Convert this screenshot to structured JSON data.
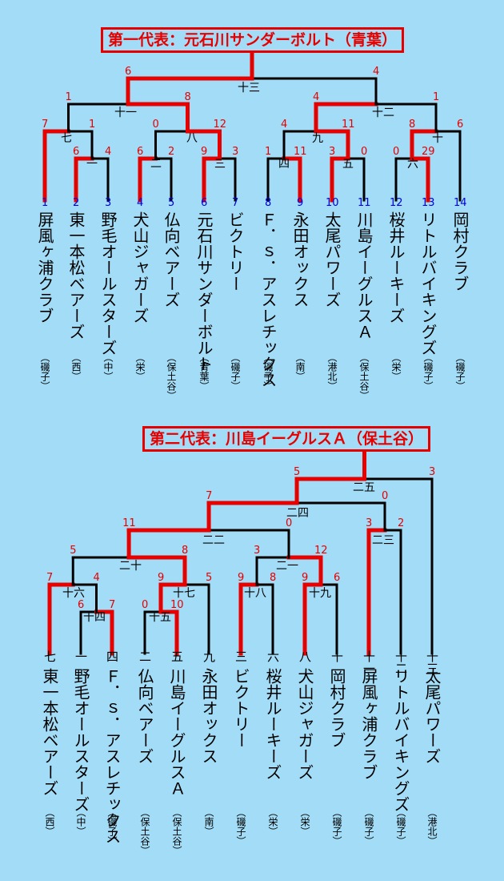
{
  "t1": {
    "title": "第一代表：元石川サンダーボルト（青葉）",
    "teams": [
      {
        "seed": "1",
        "name": "屏風ヶ浦クラブ",
        "ward": "（磯子）"
      },
      {
        "seed": "2",
        "name": "東一本松ベアーズ",
        "ward": "（西）"
      },
      {
        "seed": "3",
        "name": "野毛オールスターズ",
        "ward": "（中）"
      },
      {
        "seed": "4",
        "name": "犬山ジャガーズ",
        "ward": "（栄）"
      },
      {
        "seed": "5",
        "name": "仏向ベアーズ",
        "ward": "（保土谷）"
      },
      {
        "seed": "6",
        "name": "元石川サンダーボルト",
        "ward": "（青葉）"
      },
      {
        "seed": "7",
        "name": "ビクトリー",
        "ward": "（磯子）"
      },
      {
        "seed": "8",
        "name": "Ｆ．ｓ．アスレチックス",
        "ward": "（磯子）"
      },
      {
        "seed": "9",
        "name": "永田オックス",
        "ward": "（南）"
      },
      {
        "seed": "10",
        "name": "太尾パワーズ",
        "ward": "（港北）"
      },
      {
        "seed": "11",
        "name": "川島イーグルスＡ",
        "ward": "（保土谷）"
      },
      {
        "seed": "12",
        "name": "桜井ルーキーズ",
        "ward": "（栄）"
      },
      {
        "seed": "13",
        "name": "リトルバイキングズ",
        "ward": "（磯子）"
      },
      {
        "seed": "14",
        "name": "岡村クラブ",
        "ward": "（磯子）"
      }
    ],
    "matches": [
      {
        "id": "一",
        "l": "6",
        "r": "4"
      },
      {
        "id": "二",
        "l": "6",
        "r": "2"
      },
      {
        "id": "三",
        "l": "9",
        "r": "3"
      },
      {
        "id": "四",
        "l": "1",
        "r": "11"
      },
      {
        "id": "五",
        "l": "3",
        "r": "0"
      },
      {
        "id": "六",
        "l": "0",
        "r": "29"
      },
      {
        "id": "七",
        "l": "7",
        "r": "1"
      },
      {
        "id": "八",
        "l": "0",
        "r": "12"
      },
      {
        "id": "九",
        "l": "4",
        "r": "11"
      },
      {
        "id": "十",
        "l": "8",
        "r": "6"
      },
      {
        "id": "十一",
        "l": "1",
        "r": "8"
      },
      {
        "id": "十二",
        "l": "4",
        "r": "1"
      },
      {
        "id": "十三",
        "l": "6",
        "r": "4"
      }
    ]
  },
  "t2": {
    "title": "第二代表：川島イーグルスＡ（保土谷）",
    "teams": [
      {
        "seed": "七",
        "name": "東一本松ベアーズ",
        "ward": "（西）"
      },
      {
        "seed": "一",
        "name": "野毛オールスターズ",
        "ward": "（中）"
      },
      {
        "seed": "四",
        "name": "Ｆ．ｓ．アスレチックス",
        "ward": "（磯子）"
      },
      {
        "seed": "二",
        "name": "仏向ベアーズ",
        "ward": "（保土谷）"
      },
      {
        "seed": "五",
        "name": "川島イーグルスＡ",
        "ward": "（保土谷）"
      },
      {
        "seed": "九",
        "name": "永田オックス",
        "ward": "（南）"
      },
      {
        "seed": "三",
        "name": "ビクトリー",
        "ward": "（磯子）"
      },
      {
        "seed": "六",
        "name": "桜井ルーキーズ",
        "ward": "（栄）"
      },
      {
        "seed": "八",
        "name": "犬山ジャガーズ",
        "ward": "（栄）"
      },
      {
        "seed": "十",
        "name": "岡村クラブ",
        "ward": "（磯子）"
      },
      {
        "seed": "十一",
        "name": "屏風ヶ浦クラブ",
        "ward": "（磯子）"
      },
      {
        "seed": "十二",
        "name": "リトルバイキングズ",
        "ward": "（磯子）"
      },
      {
        "seed": "十三",
        "name": "太尾パワーズ",
        "ward": "（港北）"
      }
    ],
    "matches": [
      {
        "id": "十四",
        "l": "6",
        "r": "7"
      },
      {
        "id": "十五",
        "l": "0",
        "r": "10"
      },
      {
        "id": "十六",
        "l": "7",
        "r": "4"
      },
      {
        "id": "十七",
        "l": "9",
        "r": "5"
      },
      {
        "id": "十八",
        "l": "9",
        "r": "8"
      },
      {
        "id": "十九",
        "l": "9",
        "r": "6"
      },
      {
        "id": "二十",
        "l": "5",
        "r": "8"
      },
      {
        "id": "二一",
        "l": "3",
        "r": "12"
      },
      {
        "id": "二二",
        "l": "11",
        "r": "0"
      },
      {
        "id": "二三",
        "l": "3",
        "r": "2"
      },
      {
        "id": "二四",
        "l": "7",
        "r": "0"
      },
      {
        "id": "二五",
        "l": "5",
        "r": "3"
      }
    ]
  },
  "colors": {
    "background": "#a3dcf6",
    "win_line": "#e60000",
    "lose_line": "#000000",
    "score": "#e60000",
    "seed_number": "#0000e0"
  }
}
